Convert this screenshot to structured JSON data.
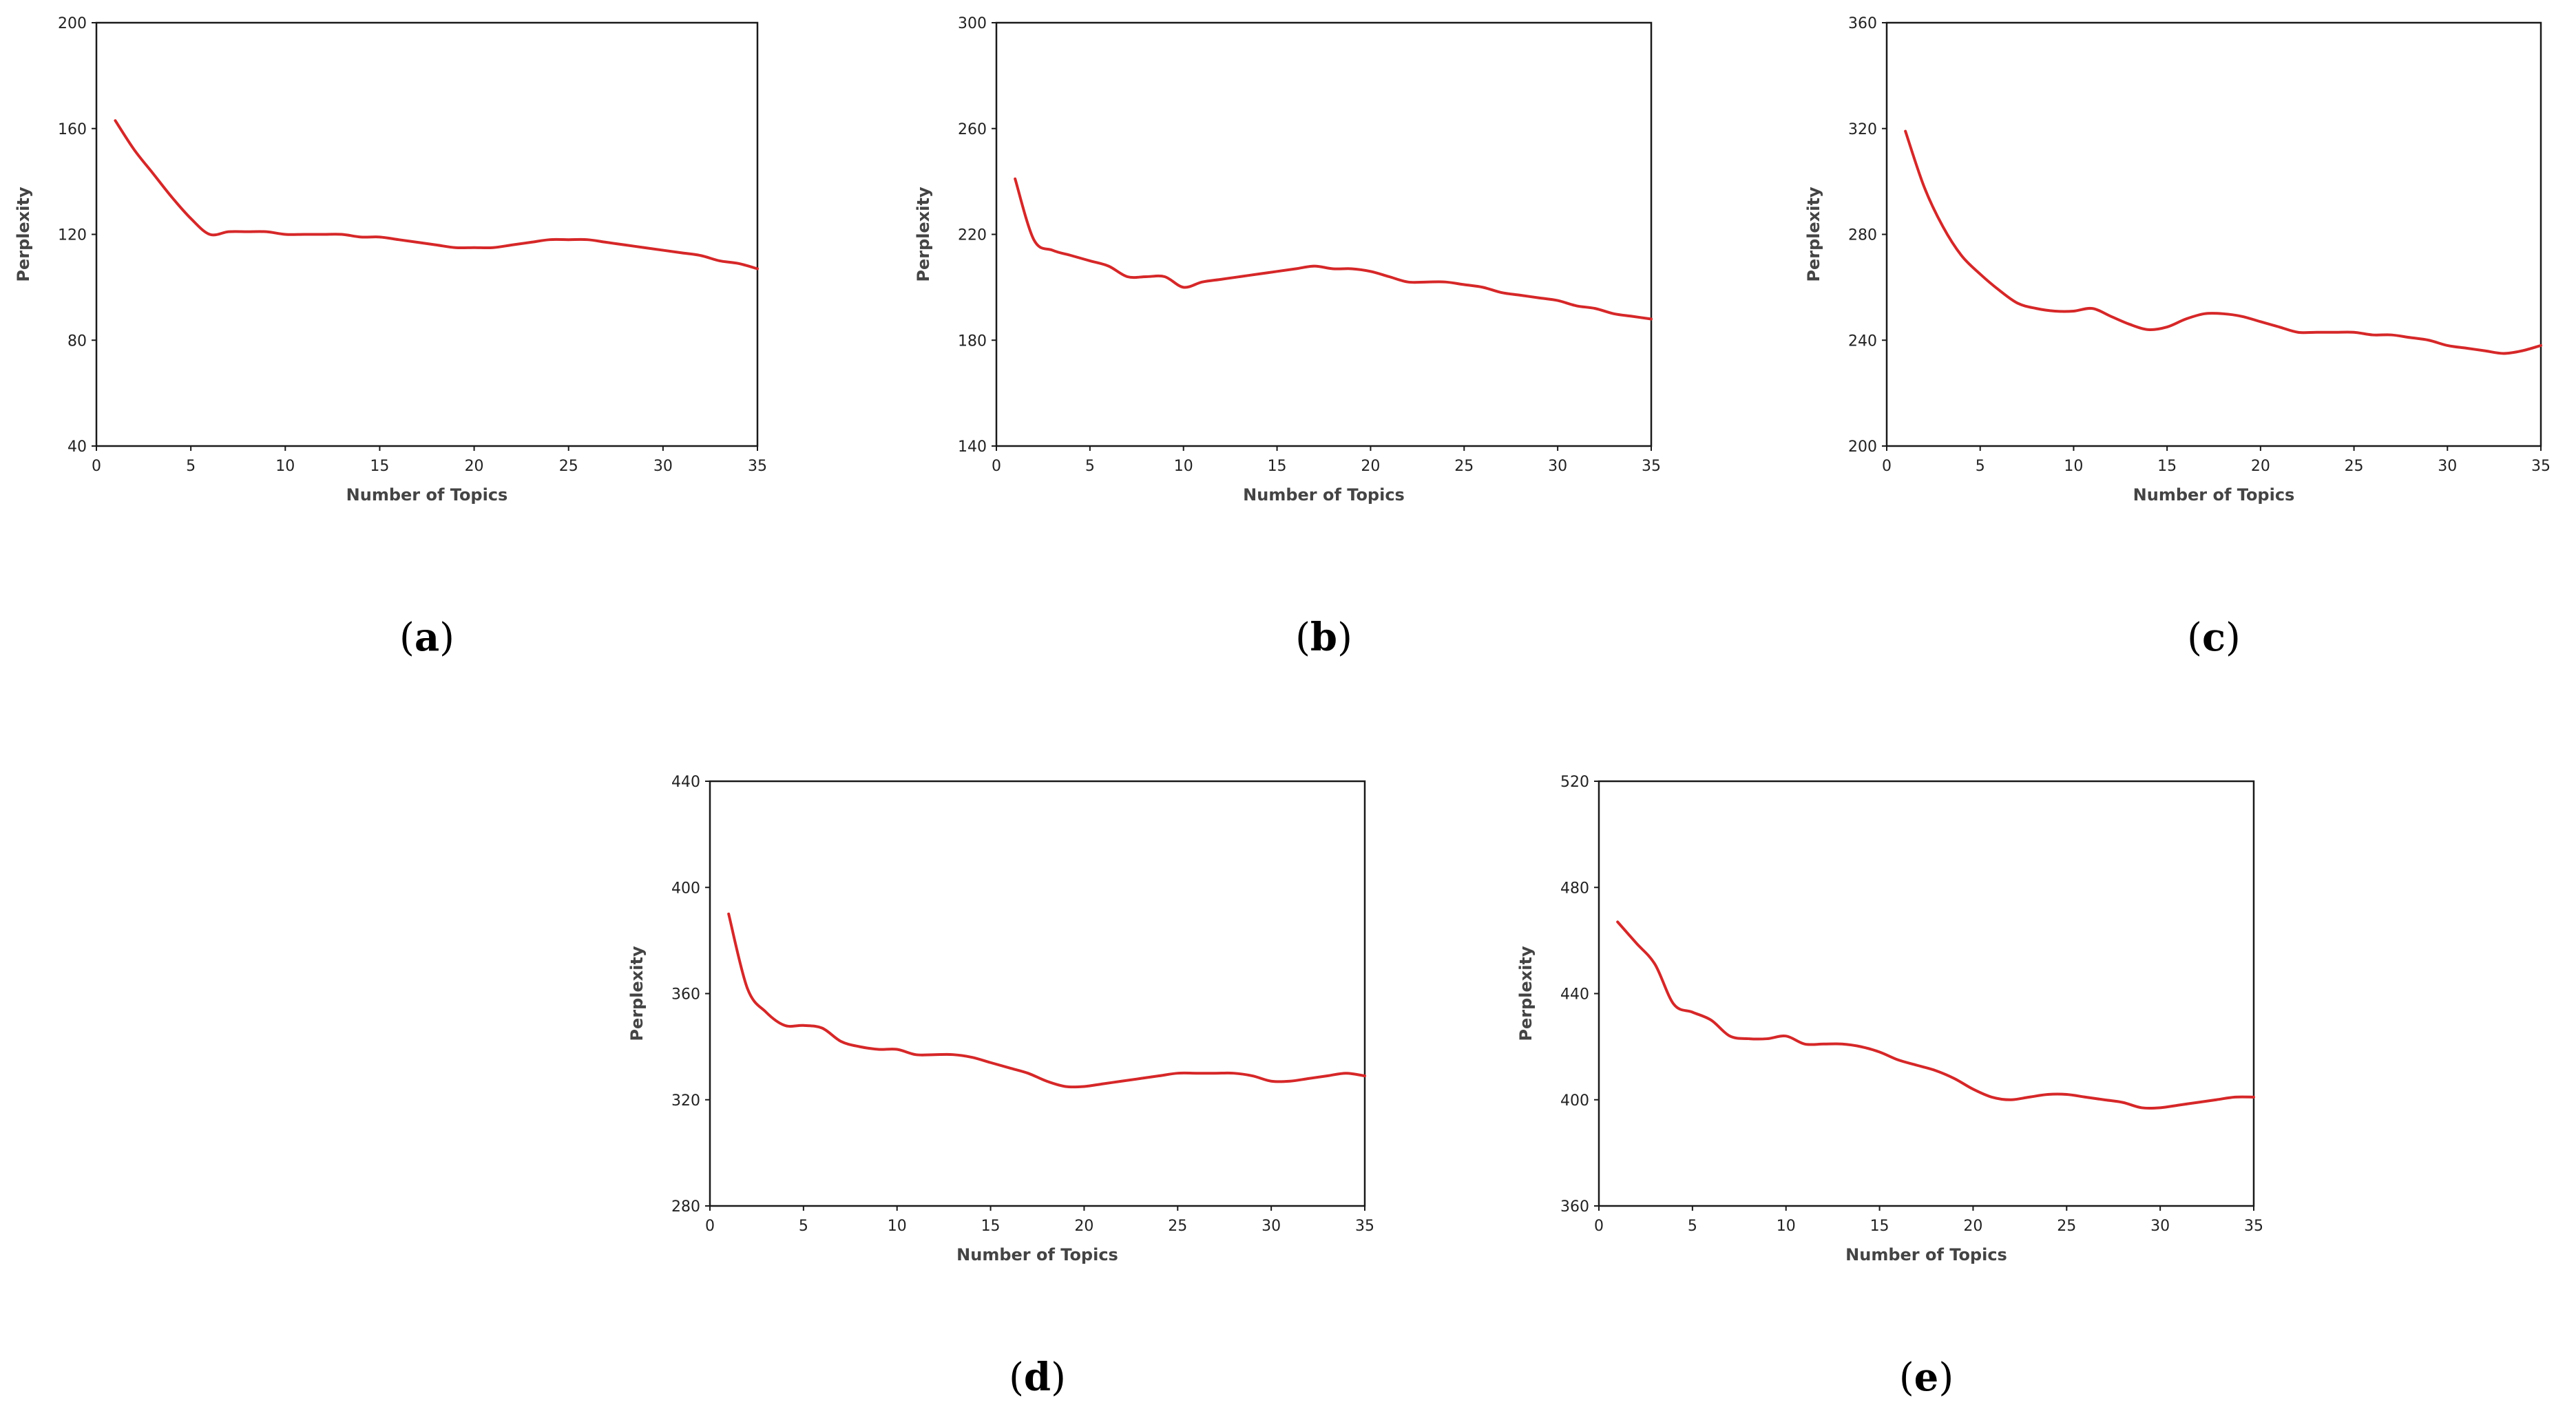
{
  "chart_data": [
    {
      "type": "line",
      "label": "a",
      "xlabel": "Number of Topics",
      "ylabel": "Perplexity",
      "xlim": [
        0,
        35
      ],
      "ylim": [
        40,
        200
      ],
      "xticks": [
        0,
        5,
        10,
        15,
        20,
        25,
        30,
        35
      ],
      "yticks": [
        40,
        80,
        120,
        160,
        200
      ],
      "line_color": "#d62728",
      "series": [
        {
          "x": [
            1,
            2,
            3,
            4,
            5,
            6,
            7,
            8,
            9,
            10,
            11,
            12,
            13,
            14,
            15,
            16,
            17,
            18,
            19,
            20,
            21,
            22,
            23,
            24,
            25,
            26,
            27,
            28,
            29,
            30,
            31,
            32,
            33,
            34,
            35
          ],
          "values": [
            163,
            152,
            143,
            134,
            126,
            120,
            121,
            121,
            121,
            120,
            120,
            120,
            120,
            119,
            119,
            118,
            117,
            116,
            115,
            115,
            115,
            116,
            117,
            118,
            118,
            118,
            117,
            116,
            115,
            114,
            113,
            112,
            110,
            109,
            107
          ]
        }
      ]
    },
    {
      "type": "line",
      "label": "b",
      "xlabel": "Number of Topics",
      "ylabel": "Perplexity",
      "xlim": [
        0,
        35
      ],
      "ylim": [
        140,
        300
      ],
      "xticks": [
        0,
        5,
        10,
        15,
        20,
        25,
        30,
        35
      ],
      "yticks": [
        140,
        180,
        220,
        260,
        300
      ],
      "line_color": "#d62728",
      "series": [
        {
          "x": [
            1,
            2,
            3,
            4,
            5,
            6,
            7,
            8,
            9,
            10,
            11,
            12,
            13,
            14,
            15,
            16,
            17,
            18,
            19,
            20,
            21,
            22,
            23,
            24,
            25,
            26,
            27,
            28,
            29,
            30,
            31,
            32,
            33,
            34,
            35
          ],
          "values": [
            241,
            218,
            214,
            212,
            210,
            208,
            204,
            204,
            204,
            200,
            202,
            203,
            204,
            205,
            206,
            207,
            208,
            207,
            207,
            206,
            204,
            202,
            202,
            202,
            201,
            200,
            198,
            197,
            196,
            195,
            193,
            192,
            190,
            189,
            188
          ]
        }
      ]
    },
    {
      "type": "line",
      "label": "c",
      "xlabel": "Number of Topics",
      "ylabel": "Perplexity",
      "xlim": [
        0,
        35
      ],
      "ylim": [
        200,
        360
      ],
      "xticks": [
        0,
        5,
        10,
        15,
        20,
        25,
        30,
        35
      ],
      "yticks": [
        200,
        240,
        280,
        320,
        360
      ],
      "line_color": "#d62728",
      "series": [
        {
          "x": [
            1,
            2,
            3,
            4,
            5,
            6,
            7,
            8,
            9,
            10,
            11,
            12,
            13,
            14,
            15,
            16,
            17,
            18,
            19,
            20,
            21,
            22,
            23,
            24,
            25,
            26,
            27,
            28,
            29,
            30,
            31,
            32,
            33,
            34,
            35
          ],
          "values": [
            319,
            298,
            283,
            272,
            265,
            259,
            254,
            252,
            251,
            251,
            252,
            249,
            246,
            244,
            245,
            248,
            250,
            250,
            249,
            247,
            245,
            243,
            243,
            243,
            243,
            242,
            242,
            241,
            240,
            238,
            237,
            236,
            235,
            236,
            238
          ]
        }
      ]
    },
    {
      "type": "line",
      "label": "d",
      "xlabel": "Number of Topics",
      "ylabel": "Perplexity",
      "xlim": [
        0,
        35
      ],
      "ylim": [
        280,
        440
      ],
      "xticks": [
        0,
        5,
        10,
        15,
        20,
        25,
        30,
        35
      ],
      "yticks": [
        280,
        320,
        360,
        400,
        440
      ],
      "line_color": "#d62728",
      "series": [
        {
          "x": [
            1,
            2,
            3,
            4,
            5,
            6,
            7,
            8,
            9,
            10,
            11,
            12,
            13,
            14,
            15,
            16,
            17,
            18,
            19,
            20,
            21,
            22,
            23,
            24,
            25,
            26,
            27,
            28,
            29,
            30,
            31,
            32,
            33,
            34,
            35
          ],
          "values": [
            390,
            362,
            353,
            348,
            348,
            347,
            342,
            340,
            339,
            339,
            337,
            337,
            337,
            336,
            334,
            332,
            330,
            327,
            325,
            325,
            326,
            327,
            328,
            329,
            330,
            330,
            330,
            330,
            329,
            327,
            327,
            328,
            329,
            330,
            329
          ]
        }
      ]
    },
    {
      "type": "line",
      "label": "e",
      "xlabel": "Number of Topics",
      "ylabel": "Perplexity",
      "xlim": [
        0,
        35
      ],
      "ylim": [
        360,
        520
      ],
      "xticks": [
        0,
        5,
        10,
        15,
        20,
        25,
        30,
        35
      ],
      "yticks": [
        360,
        400,
        440,
        480,
        520
      ],
      "line_color": "#d62728",
      "series": [
        {
          "x": [
            1,
            2,
            3,
            4,
            5,
            6,
            7,
            8,
            9,
            10,
            11,
            12,
            13,
            14,
            15,
            16,
            17,
            18,
            19,
            20,
            21,
            22,
            23,
            24,
            25,
            26,
            27,
            28,
            29,
            30,
            31,
            32,
            33,
            34,
            35
          ],
          "values": [
            467,
            459,
            451,
            436,
            433,
            430,
            424,
            423,
            423,
            424,
            421,
            421,
            421,
            420,
            418,
            415,
            413,
            411,
            408,
            404,
            401,
            400,
            401,
            402,
            402,
            401,
            400,
            399,
            397,
            397,
            398,
            399,
            400,
            401,
            401
          ]
        }
      ]
    }
  ]
}
